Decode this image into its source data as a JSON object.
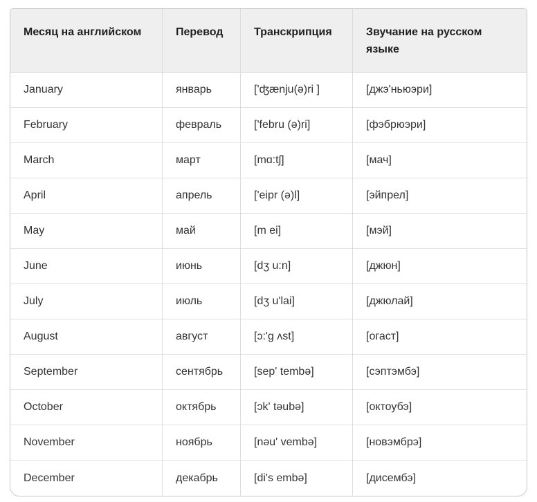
{
  "table": {
    "headers": [
      "Месяц на английском",
      "Перевод",
      "Транскрипция",
      "Звучание на русском языке"
    ],
    "rows": [
      {
        "month": "January",
        "translation": "январь",
        "transcription": "['ʤænju(ə)ri ]",
        "russian_sound": "[джэ'ньюэри]"
      },
      {
        "month": "February",
        "translation": "февраль",
        "transcription": "['febru (ə)ri]",
        "russian_sound": "[фэбрюэри]"
      },
      {
        "month": "March",
        "translation": "март",
        "transcription": "[mɑ:tʃ]",
        "russian_sound": "[мач]"
      },
      {
        "month": "April",
        "translation": "апрель",
        "transcription": "['eipr (ə)l]",
        "russian_sound": "[эйпрел]"
      },
      {
        "month": "May",
        "translation": "май",
        "transcription": "[m ei]",
        "russian_sound": "[мэй]"
      },
      {
        "month": "June",
        "translation": "июнь",
        "transcription": "[dʒ u:n]",
        "russian_sound": "[джюн]"
      },
      {
        "month": "July",
        "translation": "июль",
        "transcription": "[dʒ u'lai]",
        "russian_sound": "[джюлай]"
      },
      {
        "month": "August",
        "translation": "август",
        "transcription": "[ɔ:'g ʌst]",
        "russian_sound": "[огаст]"
      },
      {
        "month": "September",
        "translation": "сентябрь",
        "transcription": "[sep' tembə]",
        "russian_sound": "[сэптэмбэ]"
      },
      {
        "month": "October",
        "translation": "октябрь",
        "transcription": "[ɔk' təubə]",
        "russian_sound": "[октоубэ]"
      },
      {
        "month": "November",
        "translation": "ноябрь",
        "transcription": "[nəu' vembə]",
        "russian_sound": "[новэмбрэ]"
      },
      {
        "month": "December",
        "translation": "декабрь",
        "transcription": "[di's embə]",
        "russian_sound": "[дисембэ]"
      }
    ],
    "colors": {
      "header_bg": "#efefef",
      "outer_border": "#c8c8c8",
      "inner_border": "#e2e2e2",
      "header_text": "#1f1f1f",
      "cell_text": "#333333"
    }
  }
}
